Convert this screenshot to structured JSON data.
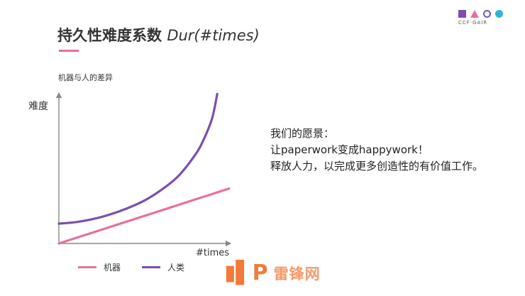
{
  "header": {
    "title_cn": "持久性难度系数 ",
    "title_en": "Dur(#times)",
    "logo_text": "CCF·GAIR"
  },
  "chart_data": {
    "type": "line",
    "title": "机器与人的差异",
    "xlabel": "#times",
    "ylabel": "难度",
    "xlim": [
      0,
      1
    ],
    "ylim": [
      0,
      1
    ],
    "series": [
      {
        "name": "机器",
        "color": "#e7709a",
        "x": [
          0.0,
          1.0
        ],
        "y": [
          0.0,
          0.36
        ]
      },
      {
        "name": "人类",
        "color": "#7a4fb0",
        "x": [
          0.0,
          0.1,
          0.2,
          0.3,
          0.4,
          0.5,
          0.6,
          0.7,
          0.8,
          0.85,
          0.9,
          0.93
        ],
        "y": [
          0.13,
          0.14,
          0.16,
          0.19,
          0.23,
          0.28,
          0.35,
          0.44,
          0.58,
          0.68,
          0.82,
          0.98
        ]
      }
    ]
  },
  "legend": {
    "items": [
      {
        "label": "机器",
        "color": "#e7709a"
      },
      {
        "label": "人类",
        "color": "#7a4fb0"
      }
    ]
  },
  "message": {
    "line1": "我们的愿景：",
    "line2": "让paperwork变成happywork！",
    "line3": "释放人力，以完成更多创造性的有价值工作。"
  },
  "watermark": {
    "text": "雷锋网"
  }
}
